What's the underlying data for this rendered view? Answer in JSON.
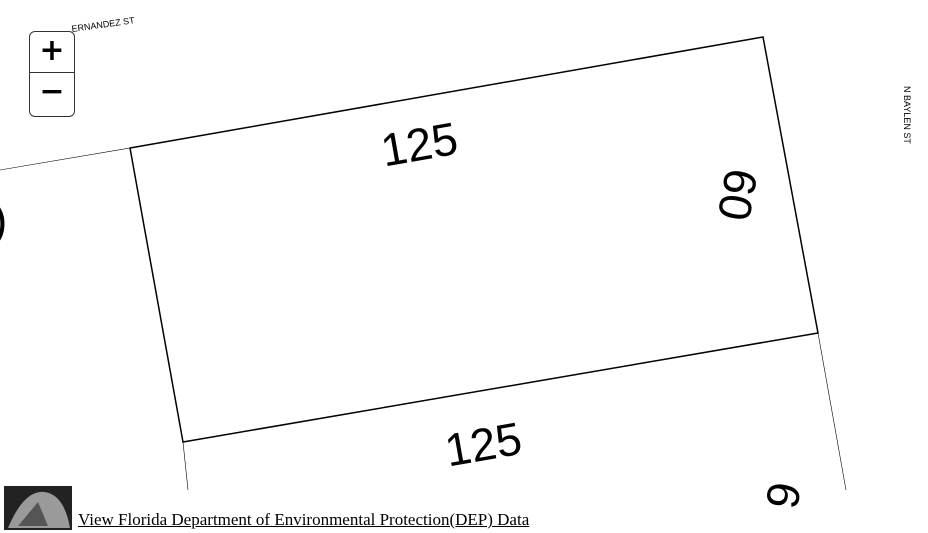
{
  "map": {
    "street_labels": [
      "ERNANDEZ ST",
      "N BAYLEN ST"
    ],
    "dimension_labels": [
      "125",
      "60",
      "125",
      "6",
      ")"
    ]
  },
  "controls": {
    "zoom_in": "+",
    "zoom_out": "−"
  },
  "link": {
    "text": "View Florida Department of Environmental Protection(DEP) Data"
  }
}
